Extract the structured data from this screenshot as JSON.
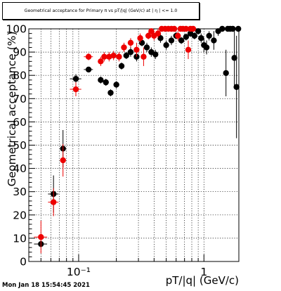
{
  "chart_data": {
    "type": "scatter",
    "title": "Geometrical acceptance for Primary π vs pT/|q| (GeV/c) at | η | <= 1.0",
    "xlabel": "pT/|q| (GeV/c)",
    "ylabel": "Geometrical acceptance (%)",
    "x_scale": "log",
    "xlim": [
      0.04,
      1.9
    ],
    "ylim": [
      0,
      100
    ],
    "grid": true,
    "y_ticks": [
      "0",
      "10",
      "20",
      "30",
      "40",
      "50",
      "60",
      "70",
      "80",
      "90",
      "100"
    ],
    "x_ticks": [
      {
        "value": 0.1,
        "label": "10⁻¹"
      },
      {
        "value": 1,
        "label": "1"
      }
    ],
    "series": [
      {
        "color": "#000000",
        "points": [
          {
            "x": 0.05,
            "y": 7.5,
            "yerr": 1.5,
            "xerr": 0.006
          },
          {
            "x": 0.063,
            "y": 29,
            "yerr": 8,
            "xerr": 0.006
          },
          {
            "x": 0.075,
            "y": 48.5,
            "yerr": 8,
            "xerr": 0.004
          },
          {
            "x": 0.095,
            "y": 78.5,
            "yerr": 2,
            "xerr": 0.01
          },
          {
            "x": 0.12,
            "y": 82.5,
            "yerr": 0.5,
            "xerr": 0.01
          },
          {
            "x": 0.15,
            "y": 78,
            "yerr": 1.5
          },
          {
            "x": 0.165,
            "y": 77,
            "yerr": 1.5
          },
          {
            "x": 0.18,
            "y": 72.5,
            "yerr": 1.5
          },
          {
            "x": 0.2,
            "y": 76,
            "yerr": 1.5
          },
          {
            "x": 0.22,
            "y": 84,
            "yerr": 1.5
          },
          {
            "x": 0.24,
            "y": 88.5,
            "yerr": 1.5
          },
          {
            "x": 0.26,
            "y": 90,
            "yerr": 2
          },
          {
            "x": 0.29,
            "y": 88,
            "yerr": 2
          },
          {
            "x": 0.32,
            "y": 94,
            "yerr": 1.5
          },
          {
            "x": 0.35,
            "y": 92,
            "yerr": 2
          },
          {
            "x": 0.38,
            "y": 90,
            "yerr": 2
          },
          {
            "x": 0.41,
            "y": 89,
            "yerr": 2
          },
          {
            "x": 0.45,
            "y": 96,
            "yerr": 2
          },
          {
            "x": 0.5,
            "y": 93,
            "yerr": 2
          },
          {
            "x": 0.55,
            "y": 95,
            "yerr": 2
          },
          {
            "x": 0.6,
            "y": 97,
            "yerr": 1.5
          },
          {
            "x": 0.66,
            "y": 95,
            "yerr": 1.5
          },
          {
            "x": 0.72,
            "y": 96.5,
            "yerr": 1.5
          },
          {
            "x": 0.78,
            "y": 98,
            "yerr": 1.5
          },
          {
            "x": 0.84,
            "y": 97,
            "yerr": 1.5
          },
          {
            "x": 0.9,
            "y": 99,
            "yerr": 1.5
          },
          {
            "x": 0.95,
            "y": 96,
            "yerr": 2
          },
          {
            "x": 1.0,
            "y": 93,
            "yerr": 3
          },
          {
            "x": 1.05,
            "y": 92,
            "yerr": 3
          },
          {
            "x": 1.1,
            "y": 97,
            "yerr": 2
          },
          {
            "x": 1.2,
            "y": 95,
            "yerr": 4
          },
          {
            "x": 1.3,
            "y": 99,
            "yerr": 2
          },
          {
            "x": 1.4,
            "y": 100,
            "yerr": 1
          },
          {
            "x": 1.5,
            "y": 81,
            "yerr": 10
          },
          {
            "x": 1.55,
            "y": 100,
            "yerr": 1
          },
          {
            "x": 1.62,
            "y": 100,
            "yerr": 1
          },
          {
            "x": 1.7,
            "y": 100,
            "yerr": 1
          },
          {
            "x": 1.75,
            "y": 87.5,
            "yerr": 12
          },
          {
            "x": 1.82,
            "y": 75,
            "yerr": 22
          },
          {
            "x": 1.88,
            "y": 100,
            "yerr": 1
          }
        ]
      },
      {
        "color": "#ee0000",
        "points": [
          {
            "x": 0.05,
            "y": 10.5,
            "yerr": 7,
            "xerr": 0.006
          },
          {
            "x": 0.063,
            "y": 25.5,
            "yerr": 6,
            "xerr": 0.006
          },
          {
            "x": 0.075,
            "y": 43.5,
            "yerr": 7,
            "xerr": 0.004
          },
          {
            "x": 0.095,
            "y": 74,
            "yerr": 3,
            "xerr": 0.01
          },
          {
            "x": 0.12,
            "y": 88,
            "yerr": 1.5,
            "xerr": 0.01
          },
          {
            "x": 0.15,
            "y": 86,
            "yerr": 2
          },
          {
            "x": 0.16,
            "y": 88,
            "yerr": 2
          },
          {
            "x": 0.175,
            "y": 88,
            "yerr": 2
          },
          {
            "x": 0.19,
            "y": 88.5,
            "yerr": 2
          },
          {
            "x": 0.21,
            "y": 88,
            "yerr": 2
          },
          {
            "x": 0.23,
            "y": 92,
            "yerr": 2
          },
          {
            "x": 0.26,
            "y": 94,
            "yerr": 2
          },
          {
            "x": 0.29,
            "y": 91,
            "yerr": 3
          },
          {
            "x": 0.31,
            "y": 96,
            "yerr": 2
          },
          {
            "x": 0.33,
            "y": 88,
            "yerr": 4
          },
          {
            "x": 0.36,
            "y": 97,
            "yerr": 1.5
          },
          {
            "x": 0.38,
            "y": 99,
            "yerr": 1.5
          },
          {
            "x": 0.4,
            "y": 97,
            "yerr": 2
          },
          {
            "x": 0.43,
            "y": 98,
            "yerr": 2
          },
          {
            "x": 0.46,
            "y": 100,
            "yerr": 1
          },
          {
            "x": 0.49,
            "y": 100,
            "yerr": 1
          },
          {
            "x": 0.52,
            "y": 100,
            "yerr": 1
          },
          {
            "x": 0.55,
            "y": 100,
            "yerr": 1
          },
          {
            "x": 0.58,
            "y": 100,
            "yerr": 1
          },
          {
            "x": 0.62,
            "y": 97,
            "yerr": 2
          },
          {
            "x": 0.65,
            "y": 100,
            "yerr": 1
          },
          {
            "x": 0.68,
            "y": 100,
            "yerr": 1
          },
          {
            "x": 0.72,
            "y": 100,
            "yerr": 1
          },
          {
            "x": 0.75,
            "y": 91,
            "yerr": 4
          },
          {
            "x": 0.78,
            "y": 100,
            "yerr": 1
          },
          {
            "x": 0.82,
            "y": 100,
            "yerr": 1
          }
        ]
      }
    ]
  },
  "timestamp": "Mon Jan 18 15:54:45 2021"
}
